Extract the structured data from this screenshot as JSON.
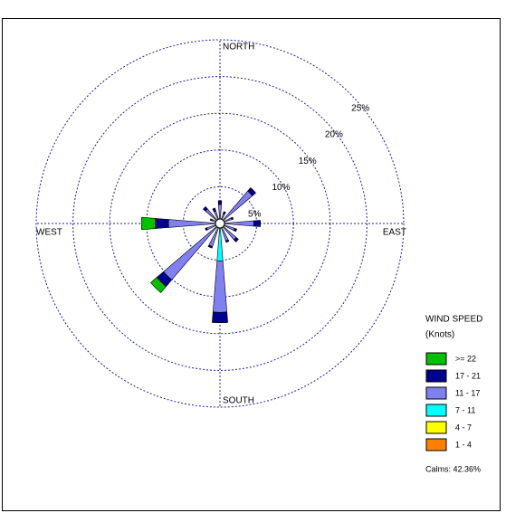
{
  "chart_data": {
    "type": "windrose",
    "x": [
      0,
      22.5,
      45,
      67.5,
      90,
      112.5,
      135,
      157.5,
      180,
      202.5,
      225,
      247.5,
      270,
      292.5,
      315,
      337.5
    ],
    "xlim": [
      0,
      360
    ],
    "xticks": [
      {
        "value": 0,
        "label": "NORTH"
      },
      {
        "value": 90,
        "label": "EAST"
      },
      {
        "value": 180,
        "label": "SOUTH"
      },
      {
        "value": 270,
        "label": "WEST"
      }
    ],
    "ylim": [
      0,
      25
    ],
    "yticks": [
      {
        "value": 5,
        "label": "5%"
      },
      {
        "value": 10,
        "label": "10%"
      },
      {
        "value": 15,
        "label": "15%"
      },
      {
        "value": 20,
        "label": "20%"
      },
      {
        "value": 25,
        "label": "25%"
      }
    ],
    "grid": true,
    "legend_title": [
      "WIND SPEED",
      "(Knots)"
    ],
    "series": [
      {
        "name": ">= 22",
        "color": "#00c000",
        "values": [
          0,
          0,
          0,
          0,
          0,
          0,
          0,
          0,
          0,
          0,
          1.1,
          0,
          1.9,
          0,
          0,
          0
        ]
      },
      {
        "name": "17 - 21",
        "color": "#000090",
        "values": [
          0.5,
          0.3,
          0.6,
          0.2,
          0.9,
          0.3,
          0.4,
          0.2,
          1.4,
          0.2,
          1.2,
          0.2,
          1.8,
          0.2,
          0.4,
          0.4
        ]
      },
      {
        "name": "11 - 17",
        "color": "#8080f0",
        "values": [
          2.3,
          1.2,
          5.5,
          1.4,
          4.0,
          1.8,
          2.4,
          2.0,
          7.0,
          2.0,
          9.6,
          1.6,
          6.6,
          1.0,
          2.2,
          1.6
        ]
      },
      {
        "name": "7 - 11",
        "color": "#00ffff",
        "values": [
          0.2,
          0.2,
          0.2,
          0.3,
          0.5,
          0.3,
          0.4,
          0.5,
          5.0,
          1.2,
          0.4,
          0.3,
          0.3,
          0.2,
          0.3,
          0.2
        ]
      },
      {
        "name": "4 - 7",
        "color": "#ffff00",
        "values": [
          0.1,
          0,
          0.1,
          0,
          0.1,
          0,
          0.1,
          0,
          0.1,
          0.1,
          0.1,
          0,
          0.1,
          0,
          0.1,
          0
        ]
      },
      {
        "name": "1 - 4",
        "color": "#ff8000",
        "values": [
          0,
          0,
          0,
          0,
          0,
          0,
          0,
          0,
          0,
          0,
          0,
          0,
          0,
          0,
          0,
          0
        ]
      }
    ],
    "calms": 42.36,
    "calms_label": "Calms: 42.36%"
  }
}
